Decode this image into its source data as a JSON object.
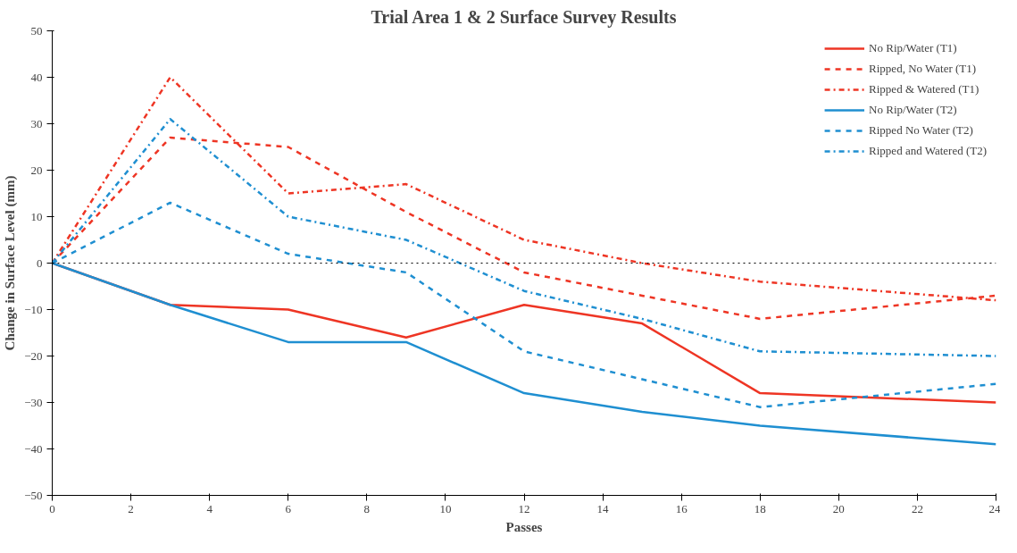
{
  "chart_data": {
    "type": "line",
    "title": "Trial Area 1 & 2 Surface Survey Results",
    "xlabel": "Passes",
    "ylabel": "Change in Surface Level (mm)",
    "x": [
      0,
      3,
      6,
      9,
      12,
      15,
      18,
      24
    ],
    "series": [
      {
        "name": "No Rip/Water (T1)",
        "color": "#ee3524",
        "line_style": "solid",
        "values": [
          0,
          -9,
          -10,
          -16,
          -9,
          -13,
          -28,
          -30
        ]
      },
      {
        "name": "Ripped, No Water (T1)",
        "color": "#ee3524",
        "line_style": "dashed",
        "values": [
          0,
          27,
          25,
          11,
          -2,
          -7,
          -12,
          -7
        ]
      },
      {
        "name": "Ripped & Watered (T1)",
        "color": "#ee3524",
        "line_style": "dashdot",
        "values": [
          0,
          40,
          15,
          17,
          5,
          0,
          -4,
          -8
        ]
      },
      {
        "name": "No Rip/Water (T2)",
        "color": "#1f8fd1",
        "line_style": "solid",
        "values": [
          0,
          -9,
          -17,
          -17,
          -28,
          -32,
          -35,
          -39
        ]
      },
      {
        "name": "Ripped No Water (T2)",
        "color": "#1f8fd1",
        "line_style": "dashed",
        "values": [
          0,
          13,
          2,
          -2,
          -19,
          -25,
          -31,
          -26
        ]
      },
      {
        "name": "Ripped and Watered (T2)",
        "color": "#1f8fd1",
        "line_style": "dashdot",
        "values": [
          0,
          31,
          10,
          5,
          -6,
          -12,
          -19,
          -20
        ]
      }
    ],
    "xlim": [
      0,
      24
    ],
    "xticks": [
      0,
      2,
      4,
      6,
      8,
      10,
      12,
      14,
      16,
      18,
      20,
      22,
      24
    ],
    "ylim": [
      -50,
      50
    ],
    "yticks": [
      -50,
      -40,
      -30,
      -20,
      -10,
      0,
      10,
      20,
      30,
      40,
      50
    ],
    "ref_lines": [
      {
        "axis": "y",
        "value": 0,
        "label": null,
        "color": "#000000",
        "line_style": "dotted"
      }
    ],
    "grid": false,
    "legend": "top right",
    "marker": "none"
  }
}
